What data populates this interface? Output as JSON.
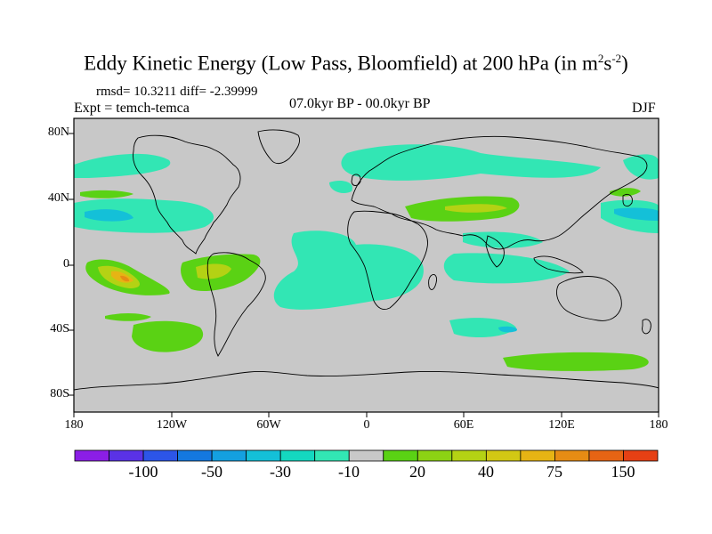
{
  "title": {
    "main": "Eddy Kinetic Energy (Low Pass, Bloomfield) at 200 hPa (in m",
    "sup1": "2",
    "mid": "s",
    "sup2": "-2",
    "end": ")"
  },
  "stats": "rmsd= 10.3211 diff= -2.39999",
  "experiment": "Expt = temch-temca",
  "period": "07.0kyr BP - 00.0kyr BP",
  "season": "DJF",
  "y_axis_labels": [
    "80N",
    "40N",
    "0",
    "40S",
    "80S"
  ],
  "x_axis_labels": [
    "180",
    "120W",
    "60W",
    "0",
    "60E",
    "120E",
    "180"
  ],
  "colorbar": {
    "colors": [
      "#8b1ee6",
      "#5a32e6",
      "#2c55e8",
      "#1478e0",
      "#14a0e0",
      "#14c0d8",
      "#14d8c0",
      "#32e6b4",
      "#c8c8c8",
      "#5ad214",
      "#8cd214",
      "#b4d214",
      "#d2c814",
      "#e6b414",
      "#e68c14",
      "#e66414",
      "#e64014"
    ],
    "labels": [
      "-100",
      "-50",
      "-30",
      "-10",
      "20",
      "40",
      "75",
      "150"
    ]
  },
  "map_colors": {
    "background": "#c8c8c8",
    "coast": "#000000"
  }
}
